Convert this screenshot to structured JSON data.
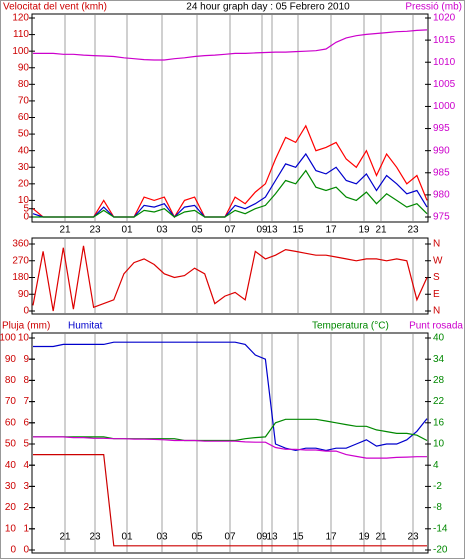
{
  "chart_data": [
    {
      "type": "line",
      "title": "24 hour graph day : 05 Febrero 2010",
      "ylabel": "Velocitat del vent (kmh)",
      "y2label": "Pressió (mb)",
      "xtick_labels": [
        "21",
        "23",
        "01",
        "03",
        "05",
        "07",
        "09",
        "13",
        "15",
        "17",
        "19",
        "21",
        "23"
      ],
      "ylim": [
        0,
        120
      ],
      "yticks": [
        0,
        5,
        10,
        20,
        30,
        40,
        50,
        60,
        70,
        80,
        90,
        100,
        110,
        120
      ],
      "ytick_color": "#cc0000",
      "y2lim": [
        975,
        1020
      ],
      "y2ticks": [
        975,
        980,
        985,
        990,
        995,
        1000,
        1005,
        1010,
        1015,
        1020
      ],
      "y2tick_color": "#cc00cc",
      "grid": true,
      "series": [
        {
          "color": "#ff0000",
          "values": [
            5,
            0,
            0,
            0,
            0,
            0,
            0,
            10,
            0,
            0,
            0,
            12,
            10,
            12,
            0,
            10,
            12,
            0,
            0,
            0,
            12,
            8,
            15,
            20,
            35,
            48,
            45,
            55,
            40,
            42,
            45,
            35,
            30,
            40,
            25,
            38,
            30,
            20,
            25,
            10
          ]
        },
        {
          "color": "#0000cc",
          "values": [
            2,
            0,
            0,
            0,
            0,
            0,
            0,
            6,
            0,
            0,
            0,
            7,
            6,
            8,
            0,
            6,
            7,
            0,
            0,
            0,
            7,
            5,
            8,
            12,
            22,
            32,
            30,
            38,
            28,
            26,
            30,
            22,
            20,
            26,
            16,
            25,
            20,
            14,
            16,
            6
          ]
        },
        {
          "color": "#008800",
          "values": [
            0,
            0,
            0,
            0,
            0,
            0,
            0,
            4,
            0,
            0,
            0,
            4,
            3,
            5,
            0,
            3,
            4,
            0,
            0,
            0,
            4,
            2,
            5,
            7,
            14,
            22,
            20,
            28,
            18,
            16,
            18,
            12,
            10,
            15,
            8,
            14,
            10,
            6,
            8,
            2
          ]
        },
        {
          "color": "#cc00cc",
          "axis": "y2",
          "values": [
            1012,
            1012,
            1012,
            1011.8,
            1011.8,
            1011.6,
            1011.5,
            1011.4,
            1011.3,
            1011,
            1010.8,
            1010.6,
            1010.5,
            1010.5,
            1010.8,
            1011,
            1011.3,
            1011.5,
            1011.6,
            1011.8,
            1012,
            1012,
            1012.1,
            1012.2,
            1012.3,
            1012.3,
            1012.4,
            1012.5,
            1012.6,
            1013,
            1014.5,
            1015.5,
            1016,
            1016.3,
            1016.5,
            1016.7,
            1016.9,
            1017,
            1017.2,
            1017.3
          ]
        }
      ]
    },
    {
      "type": "line",
      "ylim": [
        0,
        360
      ],
      "yticks": [
        0,
        90,
        180,
        270,
        360
      ],
      "ytick_color": "#cc0000",
      "y2lim": [
        0,
        360
      ],
      "y2ticks": [
        {
          "value": 0,
          "label": "N"
        },
        {
          "value": 90,
          "label": "E"
        },
        {
          "value": 180,
          "label": "S"
        },
        {
          "value": 270,
          "label": "W"
        },
        {
          "value": 360,
          "label": "N"
        }
      ],
      "y2tick_color": "#cc0000",
      "grid": true,
      "series": [
        {
          "color": "#dd0000",
          "values": [
            30,
            320,
            0,
            340,
            10,
            350,
            20,
            40,
            60,
            200,
            260,
            280,
            250,
            200,
            180,
            190,
            230,
            200,
            40,
            80,
            100,
            60,
            320,
            280,
            300,
            330,
            320,
            310,
            300,
            300,
            290,
            280,
            270,
            280,
            280,
            270,
            280,
            270,
            60,
            180
          ]
        }
      ]
    },
    {
      "type": "line",
      "xtick_labels": [
        "21",
        "23",
        "01",
        "03",
        "05",
        "07",
        "09",
        "13",
        "15",
        "17",
        "19",
        "21",
        "23"
      ],
      "ylim": [
        0,
        100
      ],
      "yticks": [
        0,
        10,
        20,
        30,
        40,
        50,
        60,
        70,
        80,
        90,
        100
      ],
      "ytick_color": "#cc0000",
      "y3lim": [
        0,
        10
      ],
      "y3ticks": [
        0,
        1,
        2,
        3,
        4,
        5,
        6,
        7,
        8,
        9,
        10
      ],
      "y3tick_color": "#cc0000",
      "y2lim": [
        -20,
        40
      ],
      "y2ticks": [
        -20,
        -14,
        -8,
        -2,
        4,
        10,
        16,
        22,
        28,
        34,
        40
      ],
      "y2tick_color": "#008800",
      "grid": true,
      "series": [
        {
          "name": "Pluja (mm)",
          "color": "#cc0000",
          "axis": "y3",
          "values": [
            4.5,
            4.5,
            4.5,
            4.5,
            4.5,
            4.5,
            4.5,
            4.5,
            0.2,
            0.2,
            0.2,
            0.2,
            0.2,
            0.2,
            0.2,
            0.2,
            0.2,
            0.2,
            0.2,
            0.2,
            0.2,
            0.2,
            0.2,
            0.2,
            0.2,
            0.2,
            0.2,
            0.2,
            0.2,
            0.2,
            0.2,
            0.2,
            0.2,
            0.2,
            0.2,
            0.2,
            0.2,
            0.2,
            0.2,
            0.2
          ]
        },
        {
          "name": "Humitat",
          "color": "#0000cc",
          "values": [
            96,
            96,
            96,
            97,
            97,
            97,
            97,
            97,
            98,
            98,
            98,
            98,
            98,
            98,
            98,
            98,
            98,
            98,
            98,
            98,
            98,
            97,
            92,
            90,
            50,
            48,
            47,
            48,
            48,
            47,
            48,
            48,
            50,
            52,
            49,
            50,
            50,
            52,
            56,
            62
          ]
        },
        {
          "name": "Temperatura (°C)",
          "color": "#008800",
          "axis": "y2",
          "values": [
            12,
            12,
            12,
            12,
            12,
            12,
            12,
            12,
            11.5,
            11.5,
            11.5,
            11.5,
            11.5,
            11.5,
            11.5,
            11,
            11,
            11,
            11,
            11,
            11,
            11.5,
            11.8,
            12,
            16,
            17,
            17,
            17,
            17,
            16.5,
            16,
            15.5,
            15,
            15,
            14,
            13.5,
            13,
            13,
            12.5,
            11
          ]
        },
        {
          "name": "Punt rosada",
          "color": "#cc00cc",
          "axis": "y2",
          "values": [
            12,
            12,
            12,
            12,
            11.8,
            11.8,
            11.6,
            11.6,
            11.5,
            11.5,
            11.4,
            11.4,
            11.3,
            11.2,
            11,
            11,
            11,
            10.8,
            10.8,
            10.8,
            10.8,
            10.6,
            10.5,
            10.5,
            9,
            8.5,
            8.5,
            8.3,
            8.3,
            8,
            8,
            7,
            6.5,
            6,
            6,
            6,
            6.2,
            6.3,
            6.4,
            6.4
          ]
        }
      ]
    }
  ]
}
